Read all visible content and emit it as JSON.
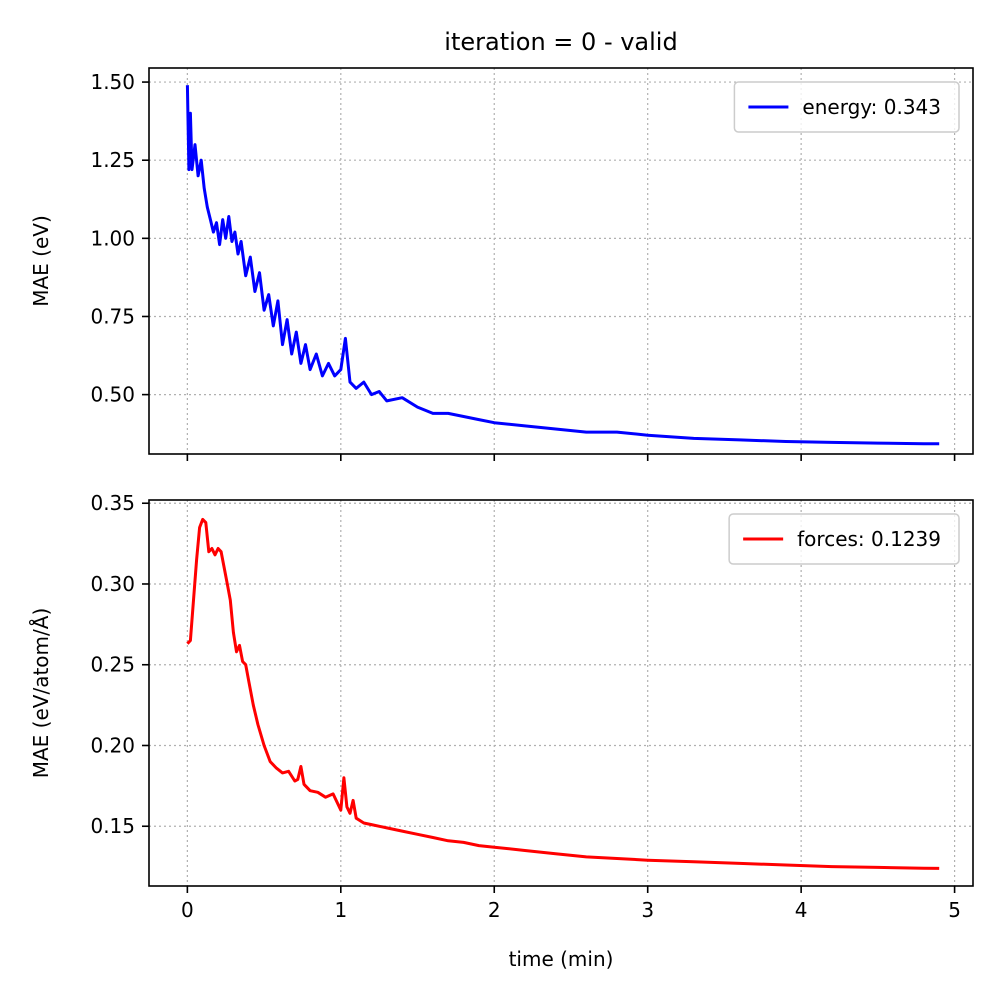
{
  "figure": {
    "title": "iteration = 0 - valid",
    "xlabel": "time (min)"
  },
  "chart_data": [
    {
      "type": "line",
      "ylabel": "MAE (eV)",
      "xlim": [
        -0.25,
        5.12
      ],
      "ylim": [
        0.31,
        1.545
      ],
      "xticks": [
        0,
        1,
        2,
        3,
        4,
        5
      ],
      "xtick_labels": [
        "0",
        "1",
        "2",
        "3",
        "4",
        "5"
      ],
      "yticks": [
        0.5,
        0.75,
        1.0,
        1.25,
        1.5
      ],
      "ytick_labels": [
        "0.50",
        "0.75",
        "1.00",
        "1.25",
        "1.50"
      ],
      "grid": true,
      "legend_position": "top-right",
      "series": [
        {
          "name": "energy: 0.343",
          "color": "#0000ff",
          "x": [
            0.0,
            0.01,
            0.02,
            0.03,
            0.05,
            0.07,
            0.09,
            0.11,
            0.13,
            0.15,
            0.17,
            0.19,
            0.21,
            0.23,
            0.25,
            0.27,
            0.29,
            0.31,
            0.33,
            0.35,
            0.38,
            0.41,
            0.44,
            0.47,
            0.5,
            0.53,
            0.56,
            0.59,
            0.62,
            0.65,
            0.68,
            0.71,
            0.74,
            0.77,
            0.8,
            0.84,
            0.88,
            0.92,
            0.96,
            1.0,
            1.03,
            1.06,
            1.1,
            1.15,
            1.2,
            1.25,
            1.3,
            1.4,
            1.5,
            1.6,
            1.7,
            1.8,
            1.9,
            2.0,
            2.2,
            2.4,
            2.6,
            2.8,
            3.0,
            3.3,
            3.6,
            3.9,
            4.2,
            4.5,
            4.8,
            4.9
          ],
          "values": [
            1.49,
            1.22,
            1.4,
            1.22,
            1.3,
            1.2,
            1.25,
            1.16,
            1.1,
            1.06,
            1.02,
            1.05,
            0.98,
            1.06,
            1.0,
            1.07,
            0.99,
            1.02,
            0.95,
            0.99,
            0.88,
            0.94,
            0.83,
            0.89,
            0.77,
            0.82,
            0.72,
            0.8,
            0.66,
            0.74,
            0.63,
            0.7,
            0.6,
            0.66,
            0.58,
            0.63,
            0.56,
            0.6,
            0.56,
            0.58,
            0.68,
            0.54,
            0.52,
            0.54,
            0.5,
            0.51,
            0.48,
            0.49,
            0.46,
            0.44,
            0.44,
            0.43,
            0.42,
            0.41,
            0.4,
            0.39,
            0.38,
            0.38,
            0.37,
            0.36,
            0.355,
            0.35,
            0.347,
            0.345,
            0.343,
            0.343
          ]
        }
      ]
    },
    {
      "type": "line",
      "ylabel": "MAE (eV/atom/Å)",
      "xlim": [
        -0.25,
        5.12
      ],
      "ylim": [
        0.113,
        0.352
      ],
      "xticks": [
        0,
        1,
        2,
        3,
        4,
        5
      ],
      "xtick_labels": [
        "0",
        "1",
        "2",
        "3",
        "4",
        "5"
      ],
      "yticks": [
        0.15,
        0.2,
        0.25,
        0.3,
        0.35
      ],
      "ytick_labels": [
        "0.15",
        "0.20",
        "0.25",
        "0.30",
        "0.35"
      ],
      "grid": true,
      "legend_position": "top-right",
      "series": [
        {
          "name": "forces: 0.1239",
          "color": "#ff0000",
          "x": [
            0.0,
            0.02,
            0.04,
            0.06,
            0.08,
            0.1,
            0.12,
            0.14,
            0.16,
            0.18,
            0.2,
            0.22,
            0.24,
            0.26,
            0.28,
            0.3,
            0.32,
            0.34,
            0.36,
            0.38,
            0.4,
            0.43,
            0.46,
            0.5,
            0.54,
            0.58,
            0.62,
            0.66,
            0.7,
            0.72,
            0.74,
            0.76,
            0.8,
            0.85,
            0.9,
            0.95,
            1.0,
            1.02,
            1.04,
            1.06,
            1.08,
            1.1,
            1.15,
            1.2,
            1.3,
            1.4,
            1.5,
            1.6,
            1.7,
            1.8,
            1.9,
            2.0,
            2.2,
            2.4,
            2.6,
            2.8,
            3.0,
            3.3,
            3.6,
            3.9,
            4.2,
            4.5,
            4.8,
            4.9
          ],
          "values": [
            0.263,
            0.265,
            0.29,
            0.315,
            0.335,
            0.34,
            0.338,
            0.32,
            0.322,
            0.318,
            0.322,
            0.32,
            0.31,
            0.3,
            0.29,
            0.27,
            0.258,
            0.262,
            0.252,
            0.25,
            0.24,
            0.225,
            0.213,
            0.2,
            0.19,
            0.186,
            0.183,
            0.184,
            0.178,
            0.179,
            0.187,
            0.176,
            0.172,
            0.171,
            0.168,
            0.17,
            0.16,
            0.18,
            0.162,
            0.158,
            0.166,
            0.155,
            0.152,
            0.151,
            0.149,
            0.147,
            0.145,
            0.143,
            0.141,
            0.14,
            0.138,
            0.137,
            0.135,
            0.133,
            0.131,
            0.13,
            0.129,
            0.128,
            0.127,
            0.126,
            0.125,
            0.1245,
            0.124,
            0.1239
          ]
        }
      ]
    }
  ]
}
